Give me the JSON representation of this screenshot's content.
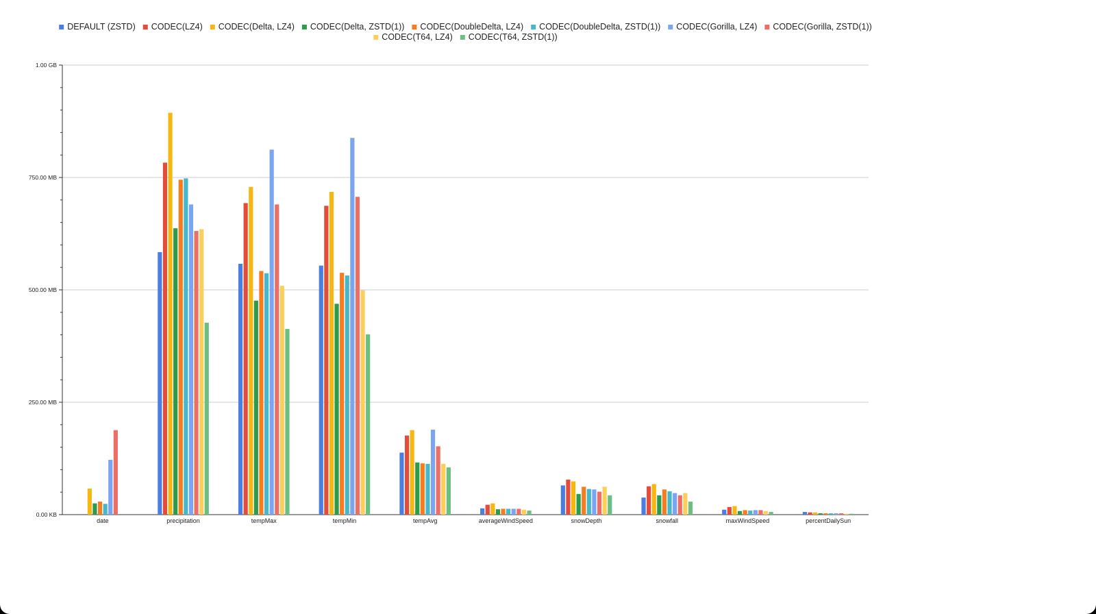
{
  "chart_data": {
    "type": "bar",
    "categories": [
      "date",
      "precipitation",
      "tempMax",
      "tempMin",
      "tempAvg",
      "averageWindSpeed",
      "snowDepth",
      "snowfall",
      "maxWindSpeed",
      "percentDailySun"
    ],
    "y_unit": "MB",
    "ylim": [
      0,
      1000
    ],
    "y_ticks": [
      {
        "value": 0,
        "label": "0.00 KB"
      },
      {
        "value": 250,
        "label": "250.00 MB"
      },
      {
        "value": 500,
        "label": "500.00 MB"
      },
      {
        "value": 750,
        "label": "750.00 MB"
      },
      {
        "value": 1000,
        "label": "1.00 GB"
      }
    ],
    "grid": true,
    "legend_position": "top",
    "series": [
      {
        "name": "DEFAULT (ZSTD)",
        "color": "#4a7fe0",
        "values": [
          0,
          584,
          558,
          554,
          138,
          14,
          65,
          38,
          11,
          6
        ]
      },
      {
        "name": "CODEC(LZ4)",
        "color": "#e34b3b",
        "values": [
          0,
          783,
          693,
          687,
          176,
          22,
          78,
          63,
          17,
          5
        ]
      },
      {
        "name": "CODEC(Delta, LZ4)",
        "color": "#f6b713",
        "values": [
          58,
          894,
          729,
          718,
          188,
          25,
          74,
          68,
          19,
          5
        ]
      },
      {
        "name": "CODEC(Delta, ZSTD(1))",
        "color": "#2e9b4a",
        "values": [
          25,
          637,
          476,
          469,
          116,
          12,
          46,
          43,
          8,
          3
        ]
      },
      {
        "name": "CODEC(DoubleDelta, LZ4)",
        "color": "#f57c1f",
        "values": [
          29,
          745,
          542,
          538,
          114,
          13,
          62,
          56,
          10,
          3
        ]
      },
      {
        "name": "CODEC(DoubleDelta, ZSTD(1))",
        "color": "#46b8c9",
        "values": [
          24,
          748,
          537,
          532,
          113,
          13,
          57,
          52,
          9,
          3
        ]
      },
      {
        "name": "CODEC(Gorilla, LZ4)",
        "color": "#7ba5f0",
        "values": [
          122,
          690,
          812,
          838,
          189,
          13,
          56,
          48,
          10,
          3
        ]
      },
      {
        "name": "CODEC(Gorilla, ZSTD(1))",
        "color": "#ec6f66",
        "values": [
          188,
          631,
          690,
          707,
          152,
          13,
          51,
          43,
          10,
          3
        ]
      },
      {
        "name": "CODEC(T64, LZ4)",
        "color": "#fcce5a",
        "values": [
          0,
          635,
          509,
          499,
          113,
          11,
          62,
          48,
          8,
          2
        ]
      },
      {
        "name": "CODEC(T64, ZSTD(1))",
        "color": "#6cbf80",
        "values": [
          0,
          427,
          413,
          401,
          105,
          9,
          43,
          29,
          6,
          2
        ]
      }
    ]
  }
}
